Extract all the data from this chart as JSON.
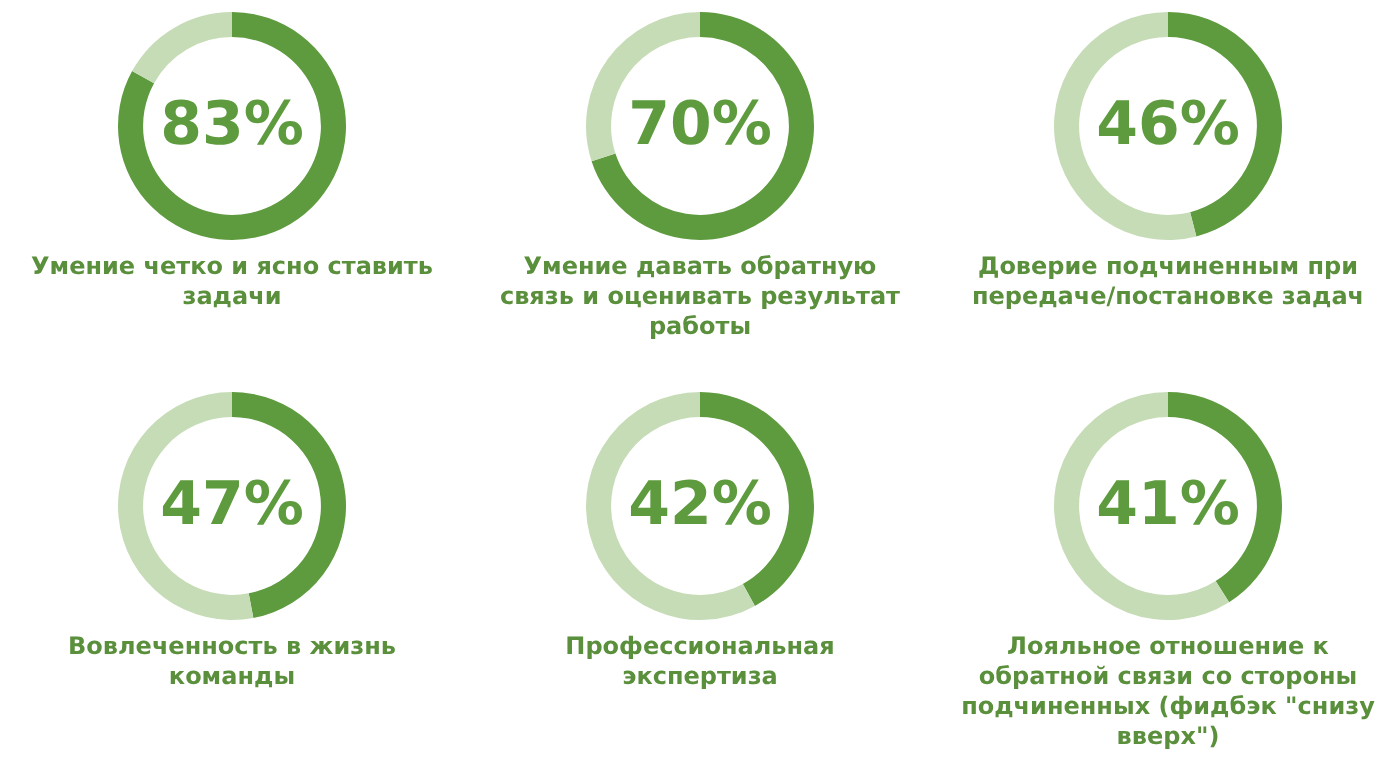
{
  "chart_data": [
    {
      "type": "donut",
      "title": "Умение четко и ясно ставить задачи",
      "categories": [
        null,
        null
      ],
      "values": [
        83,
        17
      ],
      "colors": [
        "#5e9b3e",
        "#c6dcb6"
      ],
      "value_labels": [
        "83%",
        null
      ]
    },
    {
      "type": "donut",
      "title": "Умение давать обратную связь и оценивать результат работы",
      "categories": [
        null,
        null
      ],
      "values": [
        70,
        30
      ],
      "colors": [
        "#5e9b3e",
        "#c6dcb6"
      ],
      "value_labels": [
        "70%",
        null
      ]
    },
    {
      "type": "donut",
      "title": "Доверие подчиненным при передаче/постановке задач",
      "categories": [
        null,
        null
      ],
      "values": [
        46,
        54
      ],
      "colors": [
        "#5e9b3e",
        "#c6dcb6"
      ],
      "value_labels": [
        "46%",
        null
      ]
    },
    {
      "type": "donut",
      "title": "Вовлеченность в жизнь команды",
      "categories": [
        null,
        null
      ],
      "values": [
        47,
        53
      ],
      "colors": [
        "#5e9b3e",
        "#c6dcb6"
      ],
      "value_labels": [
        "47%",
        null
      ]
    },
    {
      "type": "donut",
      "title": "Профессиональная экспертиза",
      "categories": [
        null,
        null
      ],
      "values": [
        42,
        58
      ],
      "colors": [
        "#5e9b3e",
        "#c6dcb6"
      ],
      "value_labels": [
        "42%",
        null
      ]
    },
    {
      "type": "donut",
      "title": "Лояльное отношение к обратной связи со стороны подчиненных (фидбэк \"снизу вверх\")",
      "categories": [
        null,
        null
      ],
      "values": [
        41,
        59
      ],
      "colors": [
        "#5e9b3e",
        "#c6dcb6"
      ],
      "value_labels": [
        "41%",
        null
      ]
    }
  ]
}
